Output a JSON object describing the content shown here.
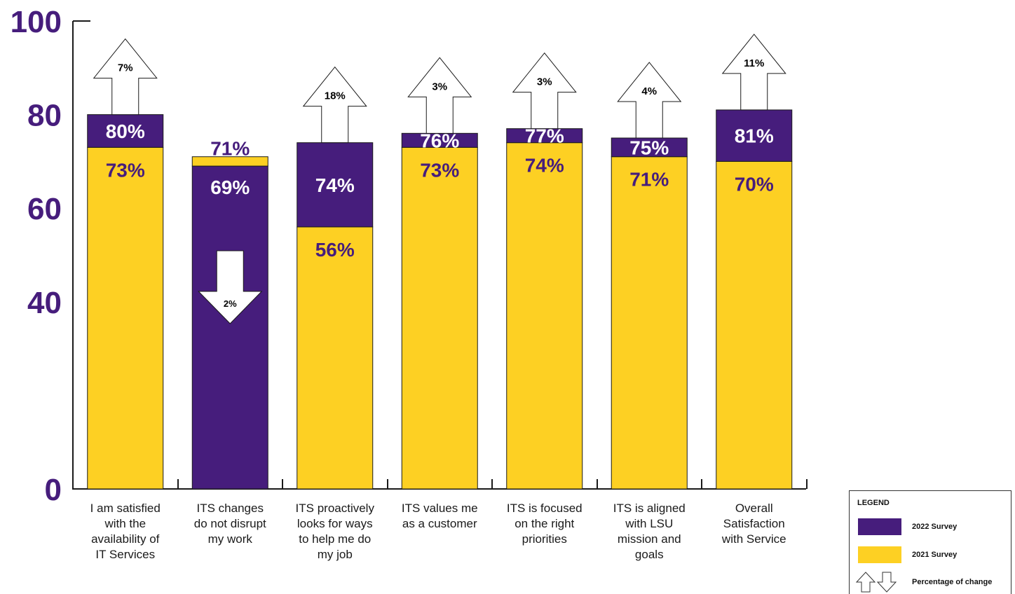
{
  "chart_data": {
    "type": "bar",
    "title": "",
    "xlabel": "",
    "ylabel": "",
    "ylim": [
      0,
      100
    ],
    "yticks": [
      "0",
      "40",
      "60",
      "80",
      "100"
    ],
    "categories": [
      "I am satisfied with the availability of IT Services",
      "ITS changes do not disrupt my work",
      "ITS proactively looks for ways to help me do my job",
      "ITS values me as a customer",
      "ITS is focused on the right priorities",
      "ITS is aligned with LSU mission and goals",
      "Overall Satisfaction with Service"
    ],
    "category_lines": [
      [
        "I am satisfied",
        "with the",
        "availability of",
        "IT Services"
      ],
      [
        "ITS changes",
        "do not disrupt",
        "my work"
      ],
      [
        "ITS proactively",
        "looks for ways",
        "to help me do",
        "my job"
      ],
      [
        "ITS values me",
        "as a customer"
      ],
      [
        "ITS is focused",
        "on the right",
        "priorities"
      ],
      [
        "ITS is aligned",
        "with LSU",
        "mission and",
        "goals"
      ],
      [
        "Overall",
        "Satisfaction",
        "with Service"
      ]
    ],
    "series": [
      {
        "name": "2022 Survey",
        "color": "#461d7c",
        "values": [
          80,
          69,
          74,
          76,
          77,
          75,
          81
        ]
      },
      {
        "name": "2021 Survey",
        "color": "#fdd023",
        "values": [
          73,
          71,
          56,
          73,
          74,
          71,
          70
        ]
      }
    ],
    "value_labels_2022": [
      "80%",
      "69%",
      "74%",
      "76%",
      "77%",
      "75%",
      "81%"
    ],
    "value_labels_2021": [
      "73%",
      "71%",
      "56%",
      "73%",
      "74%",
      "71%",
      "70%"
    ],
    "percentage_change": [
      {
        "direction": "up",
        "label": "7%"
      },
      {
        "direction": "down",
        "label": "2%"
      },
      {
        "direction": "up",
        "label": "18%"
      },
      {
        "direction": "up",
        "label": "3%"
      },
      {
        "direction": "up",
        "label": "3%"
      },
      {
        "direction": "up",
        "label": "4%"
      },
      {
        "direction": "up",
        "label": "11%"
      }
    ],
    "legend": {
      "title": "LEGEND",
      "position": "bottom-right",
      "items": [
        {
          "label": "2022 Survey",
          "color": "#461d7c"
        },
        {
          "label": "2021 Survey",
          "color": "#fdd023"
        },
        {
          "label": "Percentage of change",
          "icon": "up-down-arrows-icon"
        }
      ]
    },
    "grid": false
  }
}
